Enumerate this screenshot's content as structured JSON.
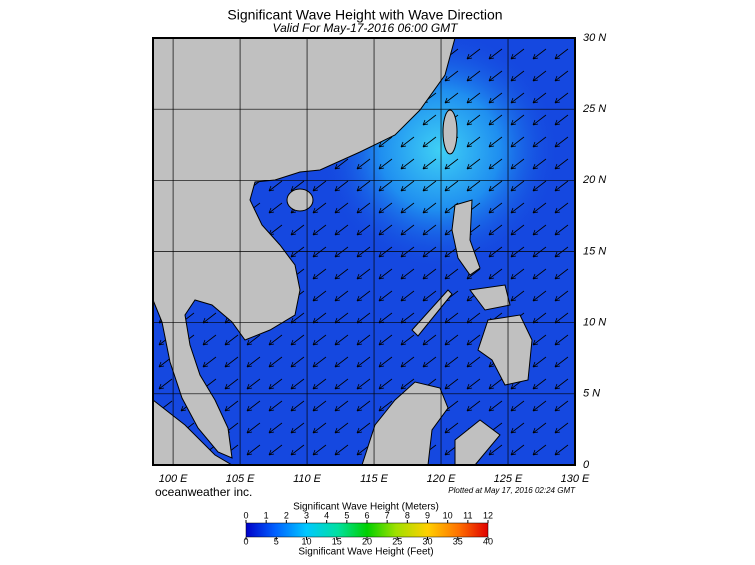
{
  "header": {
    "title": "Significant Wave Height with Wave Direction",
    "subtitle": "Valid For May-17-2016 06:00 GMT"
  },
  "map": {
    "lon_range": [
      98.5,
      130
    ],
    "lat_range": [
      0,
      30
    ],
    "lon_ticks": [
      {
        "value": 100,
        "label": "100 E"
      },
      {
        "value": 105,
        "label": "105 E"
      },
      {
        "value": 110,
        "label": "110 E"
      },
      {
        "value": 115,
        "label": "115 E"
      },
      {
        "value": 120,
        "label": "120 E"
      },
      {
        "value": 125,
        "label": "125 E"
      },
      {
        "value": 130,
        "label": "130 E"
      }
    ],
    "lat_ticks": [
      0,
      {
        "value": 5,
        "label": "5 N"
      },
      {
        "value": 10,
        "label": "10 N"
      },
      {
        "value": 15,
        "label": "15 N"
      },
      {
        "value": 20,
        "label": "20 N"
      },
      {
        "value": 25,
        "label": "25 N"
      },
      {
        "value": 30,
        "label": "30 N"
      }
    ]
  },
  "footer": {
    "credit": "oceanweather inc.",
    "plotted": "Plotted at May 17, 2016 02:24 GMT"
  },
  "colorbar": {
    "meters_title": "Significant Wave Height (Meters)",
    "feet_title": "Significant Wave Height (Feet)",
    "meters_range": [
      0,
      12
    ],
    "feet_range": [
      0,
      40
    ],
    "meters_ticks": [
      0,
      1,
      2,
      3,
      4,
      5,
      6,
      7,
      8,
      9,
      10,
      11,
      12
    ],
    "feet_ticks": [
      0,
      5,
      10,
      15,
      20,
      25,
      30,
      35,
      40
    ]
  }
}
